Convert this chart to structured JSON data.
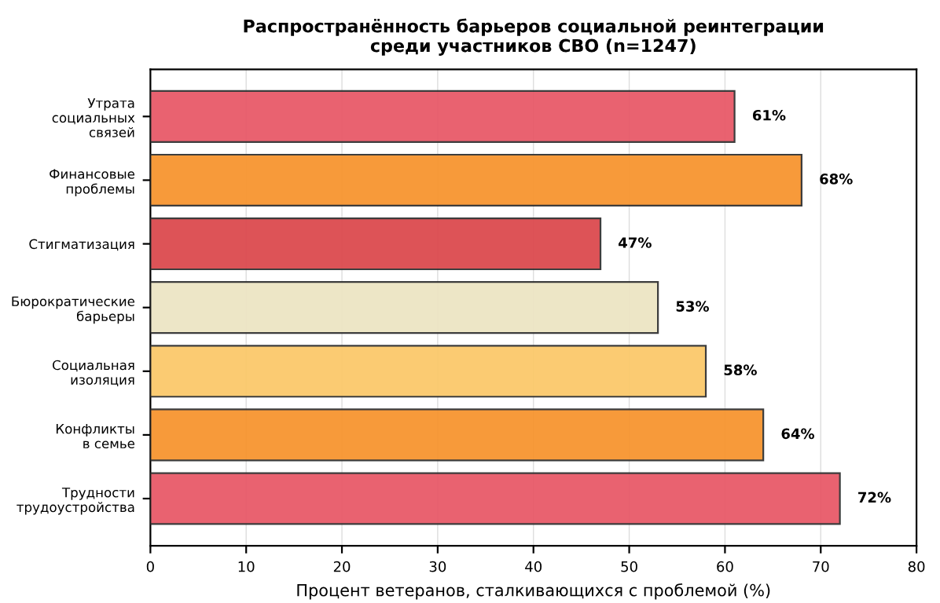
{
  "chart_data": {
    "type": "bar",
    "orientation": "horizontal",
    "title": "Распространённость барьеров социальной реинтеграции\nсреди участников СВО (n=1247)",
    "xlabel": "Процент ветеранов, сталкивающихся с проблемой (%)",
    "categories": [
      "Утрата\nсоциальных\nсвязей",
      "Финансовые\nпроблемы",
      "Стигматизация",
      "Бюрократические\nбарьеры",
      "Социальная\nизоляция",
      "Конфликты\nв семье",
      "Трудности\nтрудоустройства"
    ],
    "values": [
      61,
      68,
      47,
      53,
      58,
      64,
      72
    ],
    "colors": [
      "#e85a69",
      "#f79530",
      "#dc4a4f",
      "#ede5c4",
      "#fbc96b",
      "#f79530",
      "#e85a69"
    ],
    "value_labels": [
      "61%",
      "68%",
      "47%",
      "53%",
      "58%",
      "64%",
      "72%"
    ],
    "xlim": [
      0,
      80
    ],
    "xticks": [
      0,
      10,
      20,
      30,
      40,
      50,
      60,
      70,
      80
    ],
    "grid": "x",
    "legend": false
  }
}
